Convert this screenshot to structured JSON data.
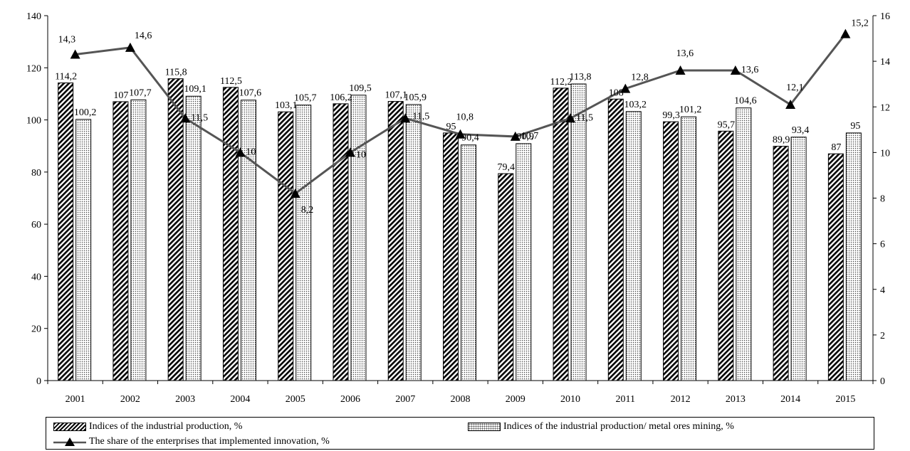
{
  "chart_data": {
    "type": "bar",
    "categories": [
      "2001",
      "2002",
      "2003",
      "2004",
      "2005",
      "2006",
      "2007",
      "2008",
      "2009",
      "2010",
      "2011",
      "2012",
      "2013",
      "2014",
      "2015"
    ],
    "series": [
      {
        "name": "Indices of the industrial production, %",
        "kind": "bar",
        "axis": "left",
        "pattern": "hatch",
        "values": [
          114.2,
          107,
          115.8,
          112.5,
          103.1,
          106.2,
          107.1,
          95,
          79.4,
          112.2,
          108,
          99.3,
          95.7,
          89.9,
          87
        ],
        "labels": [
          "114,2",
          "107",
          "115,8",
          "112,5",
          "103,1",
          "106,2",
          "107,1",
          "95",
          "79,4",
          "112,2",
          "108",
          "99,3",
          "95,7",
          "89,9",
          "87"
        ]
      },
      {
        "name": "Indices of the industrial production/ metal ores mining, %",
        "kind": "bar",
        "axis": "left",
        "pattern": "dots",
        "values": [
          100.2,
          107.7,
          109.1,
          107.6,
          105.7,
          109.5,
          105.9,
          90.4,
          90.9,
          113.8,
          103.2,
          101.2,
          104.6,
          93.4,
          95
        ],
        "labels": [
          "100,2",
          "107,7",
          "109,1",
          "107,6",
          "105,7",
          "109,5",
          "105,9",
          "90,4",
          "90,9",
          "113,8",
          "103,2",
          "101,2",
          "104,6",
          "93,4",
          "95"
        ]
      },
      {
        "name": "The share of the enterprises that implemented innovation, %",
        "kind": "line",
        "axis": "right",
        "marker": "triangle",
        "values": [
          14.3,
          14.6,
          11.5,
          10,
          8.2,
          10,
          11.5,
          10.8,
          10.7,
          11.5,
          12.8,
          13.6,
          13.6,
          12.1,
          15.2
        ],
        "labels": [
          "14,3",
          "14,6",
          "11,5",
          "10",
          "8,2",
          "10",
          "11,5",
          "10,8",
          "10,7",
          "11,5",
          "12,8",
          "13,6",
          "13,6",
          "12,1",
          "15,2"
        ]
      }
    ],
    "y_left": {
      "lim": [
        0,
        140
      ],
      "ticks": [
        "0",
        "20",
        "40",
        "60",
        "80",
        "100",
        "120",
        "140"
      ]
    },
    "y_right": {
      "lim": [
        0,
        16
      ],
      "ticks": [
        "0",
        "2",
        "4",
        "6",
        "8",
        "10",
        "12",
        "14",
        "16"
      ]
    },
    "title": "",
    "xlabel": "",
    "ylabel": "",
    "grid": false,
    "legend_position": "bottom",
    "colors": {
      "bar_pattern": "#000000",
      "line": "#555555",
      "marker": "#000000",
      "axis": "#000000"
    }
  }
}
